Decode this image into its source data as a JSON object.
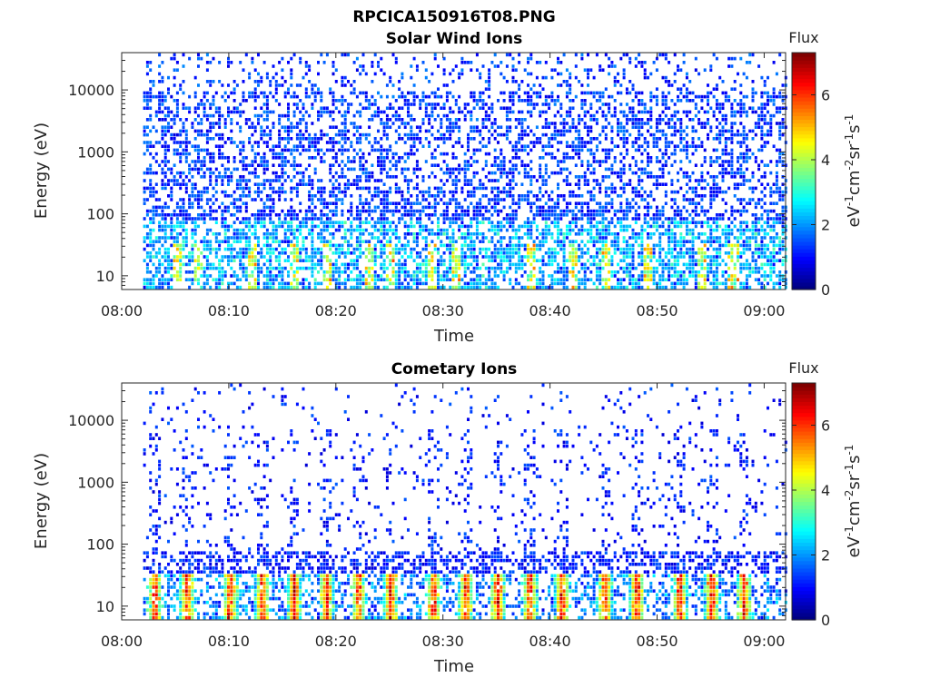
{
  "figure": {
    "title": "RPCICA150916T08.PNG"
  },
  "chart_data": [
    {
      "type": "heatmap",
      "title": "Solar Wind Ions",
      "xlabel": "Time",
      "ylabel": "Energy (eV)",
      "x_ticks": [
        "08:00",
        "08:10",
        "08:20",
        "08:30",
        "08:40",
        "08:50",
        "09:00"
      ],
      "xlim": [
        "08:00",
        "09:02"
      ],
      "y_scale": "log",
      "y_ticks": [
        10,
        100,
        1000,
        10000
      ],
      "ylim": [
        6,
        40000
      ],
      "colorbar": {
        "label": "Flux",
        "unit": "eV-1cm-2sr-1s-1",
        "ticks": [
          0,
          2,
          4,
          6
        ],
        "range": [
          0,
          7.3
        ]
      },
      "data_start": "08:02",
      "description_profile": "sparse dark blue counts across all energies, brighter cyan/yellow below 100 eV",
      "peak_times": [
        "08:05",
        "08:07",
        "08:12",
        "08:16",
        "08:19",
        "08:23",
        "08:25",
        "08:29",
        "08:31",
        "08:38",
        "08:42",
        "08:45",
        "08:49",
        "08:54",
        "08:57"
      ]
    },
    {
      "type": "heatmap",
      "title": "Cometary Ions",
      "xlabel": "Time",
      "ylabel": "Energy (eV)",
      "x_ticks": [
        "08:00",
        "08:10",
        "08:20",
        "08:30",
        "08:40",
        "08:50",
        "09:00"
      ],
      "xlim": [
        "08:00",
        "09:02"
      ],
      "y_scale": "log",
      "y_ticks": [
        10,
        100,
        1000,
        10000
      ],
      "ylim": [
        6,
        40000
      ],
      "colorbar": {
        "label": "Flux",
        "unit": "eV-1cm-2sr-1s-1",
        "ticks": [
          0,
          2,
          4,
          6
        ],
        "range": [
          0,
          7.3
        ]
      },
      "data_start": "08:02",
      "peak_times": [
        "08:03",
        "08:06",
        "08:10",
        "08:13",
        "08:16",
        "08:19",
        "08:22",
        "08:25",
        "08:29",
        "08:32",
        "08:35",
        "08:38",
        "08:41",
        "08:45",
        "08:48",
        "08:52",
        "08:55",
        "08:58"
      ]
    }
  ]
}
